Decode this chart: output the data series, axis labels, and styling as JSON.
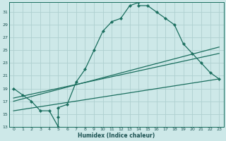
{
  "background_color": "#cde8e8",
  "grid_color": "#aed0d0",
  "line_color": "#1a6e5e",
  "xlabel": "Humidex (Indice chaleur)",
  "xlim": [
    -0.5,
    23.5
  ],
  "ylim": [
    13,
    32.5
  ],
  "xticks": [
    0,
    1,
    2,
    3,
    4,
    5,
    6,
    7,
    8,
    9,
    10,
    11,
    12,
    13,
    14,
    15,
    16,
    17,
    18,
    19,
    20,
    21,
    22,
    23
  ],
  "yticks": [
    13,
    15,
    17,
    19,
    21,
    23,
    25,
    27,
    29,
    31
  ],
  "curve_x": [
    0,
    1,
    2,
    3,
    4,
    5,
    5,
    5,
    6,
    7,
    8,
    9,
    10,
    11,
    12,
    13,
    14,
    14,
    15,
    16,
    17,
    18,
    19,
    20,
    21,
    22,
    23
  ],
  "curve_y": [
    19,
    18,
    17,
    15.5,
    15.5,
    13,
    14.5,
    16,
    16.5,
    20,
    22,
    25,
    28,
    29.5,
    30,
    32,
    32.5,
    32,
    32,
    31,
    30,
    29,
    26,
    24.5,
    23,
    21.5,
    20.5
  ],
  "line1_x": [
    0,
    23
  ],
  "line1_y": [
    17.5,
    24.5
  ],
  "line2_x": [
    0,
    23
  ],
  "line2_y": [
    17.0,
    25.5
  ],
  "line3_x": [
    0,
    23
  ],
  "line3_y": [
    15.5,
    20.5
  ]
}
